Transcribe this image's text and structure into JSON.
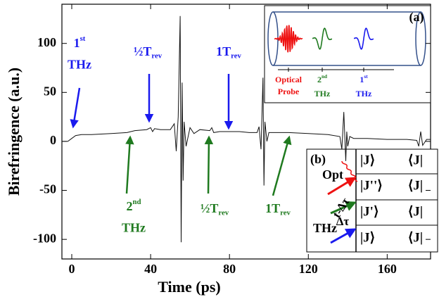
{
  "chart_data": {
    "type": "line",
    "xlabel": "Time (ps)",
    "ylabel": "Birefringence (a.u.)",
    "xlim": [
      -5,
      182
    ],
    "ylim": [
      -120,
      140
    ],
    "xticks": [
      0,
      40,
      80,
      120,
      160
    ],
    "yticks": [
      -100,
      -50,
      0,
      50,
      100
    ],
    "color": "#111111",
    "x": [
      -5,
      -2,
      0,
      2,
      5,
      10,
      20,
      28,
      32,
      38,
      40,
      41,
      42,
      45,
      50,
      52,
      53,
      54,
      55,
      55.5,
      56,
      56.5,
      57,
      58,
      60,
      62,
      65,
      70,
      71,
      72,
      75,
      80,
      85,
      90,
      94,
      95,
      96,
      97,
      97.5,
      98,
      99,
      100,
      105,
      110,
      120,
      130,
      136,
      137,
      138,
      139,
      139.5,
      140,
      141,
      143,
      150,
      160,
      170,
      175,
      176,
      177,
      178,
      180,
      182
    ],
    "values": [
      0,
      0,
      3,
      6,
      7,
      7,
      8,
      9,
      11,
      12,
      14,
      10,
      13,
      12,
      12,
      18,
      -10,
      25,
      128,
      -103,
      60,
      -40,
      20,
      -5,
      14,
      8,
      12,
      11,
      14,
      9,
      10,
      10,
      10,
      9,
      9,
      15,
      -8,
      65,
      -45,
      20,
      0,
      9,
      9,
      9,
      8,
      7,
      5,
      -8,
      30,
      -20,
      10,
      -5,
      5,
      3,
      3,
      2,
      2,
      1,
      -5,
      10,
      -4,
      2,
      2
    ],
    "annotations": [
      {
        "text": "1",
        "sup": "st",
        "line2": "THz",
        "color": "#1a1aee"
      },
      {
        "text": "½T",
        "sub": "rev",
        "color": "#1a1aee"
      },
      {
        "text": "1T",
        "sub": "rev",
        "color": "#1a1aee"
      },
      {
        "text": "2",
        "sup": "nd",
        "line2": "THz",
        "color": "#1f7a1f"
      },
      {
        "text": "½T",
        "sub": "rev",
        "color": "#1f7a1f"
      },
      {
        "text": "1T",
        "sub": "rev",
        "color": "#1f7a1f"
      }
    ]
  },
  "inset_a": {
    "label": "(a)",
    "probe": {
      "line1": "Optical",
      "line2": "Probe",
      "color": "#ee1111"
    },
    "second": {
      "text": "2",
      "sup": "nd",
      "line2": "THz",
      "color": "#1f7a1f"
    },
    "first": {
      "text": "1",
      "sup": "st",
      "line2": "THz",
      "color": "#1a1aee"
    }
  },
  "inset_b": {
    "label": "(b)",
    "rows": [
      [
        "|J⟩",
        "⟨J|"
      ],
      [
        "|J''⟩",
        "⟨J|"
      ],
      [
        "|J'⟩",
        "⟨J|"
      ],
      [
        "|J⟩",
        "⟨J|"
      ]
    ],
    "opt": "Opt",
    "t_dtau": "t-Δτ",
    "dtau": "Δτ",
    "thz": "THz"
  }
}
